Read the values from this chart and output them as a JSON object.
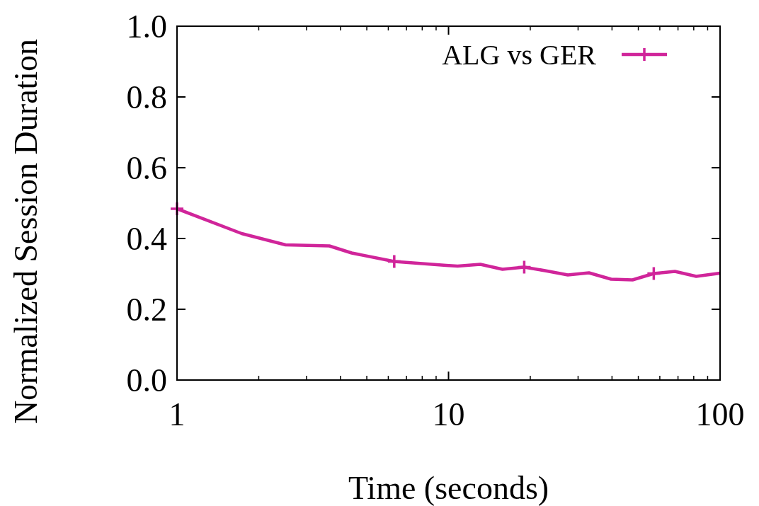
{
  "chart_data": {
    "type": "line",
    "xlabel": "Time (seconds)",
    "ylabel": "Normalized Session Duration",
    "log": "x",
    "xlim": [
      1,
      100
    ],
    "xticks": [
      1,
      10,
      100
    ],
    "ylim": [
      0,
      1
    ],
    "yticks": [
      {
        "value": 0,
        "label": "0.0"
      },
      {
        "value": 0.2,
        "label": "0.2"
      },
      {
        "value": 0.4,
        "label": "0.4"
      },
      {
        "value": 0.6,
        "label": "0.6"
      },
      {
        "value": 0.8,
        "label": "0.8"
      },
      {
        "value": 1,
        "label": "1.0"
      }
    ],
    "x": [
      1,
      1.73,
      2.51,
      3.64,
      4.4,
      6.31,
      9.8,
      10.8,
      13.1,
      15.8,
      19,
      22.7,
      27.5,
      32.9,
      39.7,
      47.6,
      57,
      68.2,
      81.7,
      100
    ],
    "series": [
      {
        "name": "ALG vs GER",
        "color": "#d0259a",
        "marker": "none",
        "values": [
          0.484,
          0.414,
          0.382,
          0.379,
          0.359,
          0.335,
          0.324,
          0.322,
          0.327,
          0.313,
          0.319,
          0.309,
          0.297,
          0.303,
          0.285,
          0.283,
          0.301,
          0.307,
          0.293,
          0.302
        ]
      },
      {
        "type": "scatter",
        "color": "#d0259a",
        "x": [
          1,
          6.31,
          19,
          57
        ],
        "values": [
          0.484,
          0.335,
          0.319,
          0.301
        ]
      }
    ],
    "marker": "cross",
    "line_style": "solid",
    "legend": "top right",
    "grid": false
  }
}
